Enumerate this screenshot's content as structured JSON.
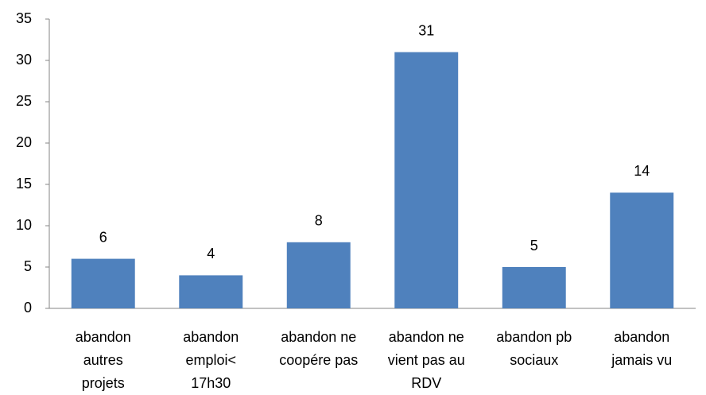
{
  "chart_data": {
    "type": "bar",
    "categories": [
      "abandon\nautres\nprojets",
      "abandon\nemploi<\n17h30",
      "abandon ne\ncoopére pas",
      "abandon ne\nvient pas au\nRDV",
      "abandon pb\nsociaux",
      "abandon\njamais vu"
    ],
    "values": [
      6,
      4,
      8,
      31,
      5,
      14
    ],
    "color": "#4f81bd",
    "ylim": [
      0,
      35
    ],
    "yticks": [
      0,
      5,
      10,
      15,
      20,
      25,
      30,
      35
    ],
    "grid": false
  }
}
